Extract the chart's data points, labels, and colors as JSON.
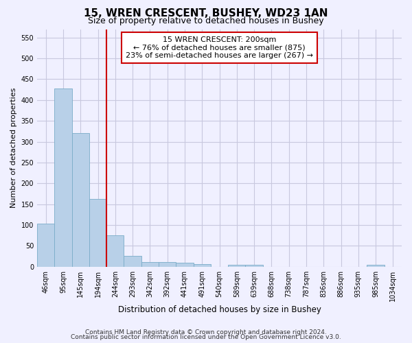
{
  "title": "15, WREN CRESCENT, BUSHEY, WD23 1AN",
  "subtitle": "Size of property relative to detached houses in Bushey",
  "xlabel": "Distribution of detached houses by size in Bushey",
  "ylabel": "Number of detached properties",
  "categories": [
    "46sqm",
    "95sqm",
    "145sqm",
    "194sqm",
    "244sqm",
    "293sqm",
    "342sqm",
    "392sqm",
    "441sqm",
    "491sqm",
    "540sqm",
    "589sqm",
    "639sqm",
    "688sqm",
    "738sqm",
    "787sqm",
    "836sqm",
    "886sqm",
    "935sqm",
    "985sqm",
    "1034sqm"
  ],
  "values": [
    104,
    427,
    321,
    162,
    75,
    26,
    12,
    12,
    10,
    6,
    0,
    5,
    5,
    0,
    0,
    0,
    0,
    0,
    0,
    5,
    0
  ],
  "bar_color": "#b8d0e8",
  "bar_edge_color": "#7aacc8",
  "vline_x": 3.5,
  "vline_color": "#cc0000",
  "annotation_line1": "15 WREN CRESCENT: 200sqm",
  "annotation_line2": "← 76% of detached houses are smaller (875)",
  "annotation_line3": "23% of semi-detached houses are larger (267) →",
  "annotation_box_color": "#ffffff",
  "annotation_box_edge": "#cc0000",
  "ylim": [
    0,
    570
  ],
  "yticks": [
    0,
    50,
    100,
    150,
    200,
    250,
    300,
    350,
    400,
    450,
    500,
    550
  ],
  "footer1": "Contains HM Land Registry data © Crown copyright and database right 2024.",
  "footer2": "Contains public sector information licensed under the Open Government Licence v3.0.",
  "background_color": "#f0f0ff",
  "grid_color": "#c8c8de",
  "title_fontsize": 11,
  "subtitle_fontsize": 9,
  "tick_label_fontsize": 7,
  "ylabel_fontsize": 8,
  "xlabel_fontsize": 8.5,
  "annotation_fontsize": 8,
  "footer_fontsize": 6.5
}
